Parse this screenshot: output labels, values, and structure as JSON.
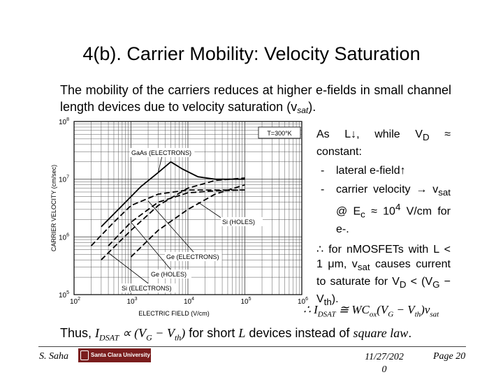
{
  "slide": {
    "title": "4(b). Carrier Mobility: Velocity Saturation",
    "intro_text": "The mobility of the carriers reduces at higher e-fields in small channel length devices due to velocity saturation (v",
    "intro_sub": "sat",
    "intro_end": ").",
    "right": {
      "p1": "As L↓, while V",
      "p1_sub": "D",
      "p1_end": " ≈ constant:",
      "bullets": [
        {
          "dash": "-",
          "text": "lateral e-field↑"
        },
        {
          "dash": "-",
          "text": "carrier velocity → v",
          "sub": "sat",
          "text2": " @ E",
          "sub2": "c",
          "text3": " ≈ 10",
          "sup": "4",
          "text4": " V/cm for e-."
        }
      ],
      "conclusion_a": "∴ for nMOSFETs with L < 1 μm, v",
      "conclusion_sub": "sat",
      "conclusion_b": " causes current to saturate for V",
      "conclusion_sub2": "D",
      "conclusion_c": " < (V",
      "conclusion_sub3": "G",
      "conclusion_d": " − V",
      "conclusion_sub4": "th",
      "conclusion_e": ")."
    },
    "equation": {
      "a": "∴ I",
      "sub1": "DSAT",
      "b": " ≅ WC",
      "sub2": "ox",
      "c": "(V",
      "sub3": "G",
      "d": " − V",
      "sub4": "th",
      "e": ")v",
      "sub5": "sat"
    },
    "bottom": {
      "a": "Thus, ",
      "i": "I",
      "isub": "DSAT",
      "b": " ∝ (V",
      "gsub": "G",
      "c": " − V",
      "thsub": "th",
      "d": ")",
      "e": " for short ",
      "L": "L",
      "f": " devices instead of ",
      "sq": "square law",
      "g": "."
    },
    "footer": {
      "author": "S. Saha",
      "logo_text": "Santa Clara University",
      "date_line1": "11/27/202",
      "date_line2": "0",
      "page": "Page 20"
    }
  },
  "chart_data": {
    "type": "line",
    "x_scale": "log",
    "y_scale": "log",
    "xlim": [
      100,
      1000000
    ],
    "ylim": [
      100000,
      100000000
    ],
    "xlabel": "ELECTRIC FIELD (V/cm)",
    "ylabel": "CARRIER VELOCITY (cm/sec)",
    "x_ticks": [
      "10^2",
      "10^3",
      "10^4",
      "10^5",
      "10^6"
    ],
    "y_ticks": [
      "10^5",
      "10^6",
      "10^7",
      "10^8"
    ],
    "annotation_temp": "T=300°K",
    "grid": true,
    "series": [
      {
        "name": "GaAs (ELECTRONS)",
        "style": "solid",
        "x": [
          300,
          700,
          1500,
          3000,
          5000,
          8000,
          15000,
          30000,
          100000
        ],
        "y": [
          1500000,
          3500000,
          7500000,
          13000000,
          20000000,
          15000000,
          11000000,
          10000000,
          10000000
        ]
      },
      {
        "name": "Si (ELECTRONS)",
        "style": "dashed",
        "x": [
          300,
          1000,
          3000,
          10000,
          30000,
          100000
        ],
        "y": [
          400000,
          1300000,
          3500000,
          7000000,
          9500000,
          10500000
        ]
      },
      {
        "name": "Si (HOLES)",
        "style": "dashed",
        "x": [
          1000,
          3000,
          10000,
          30000,
          100000
        ],
        "y": [
          450000,
          1300000,
          3000000,
          5500000,
          8000000
        ]
      },
      {
        "name": "Ge (ELECTRONS)",
        "style": "dashed",
        "x": [
          200,
          500,
          1000,
          3000,
          10000,
          30000,
          100000
        ],
        "y": [
          700000,
          1800000,
          3500000,
          5500000,
          6500000,
          6500000,
          6500000
        ]
      },
      {
        "name": "Ge (HOLES)",
        "style": "dashed",
        "x": [
          400,
          1000,
          3000,
          10000,
          30000,
          100000
        ],
        "y": [
          700000,
          1800000,
          4000000,
          5800000,
          6300000,
          6500000
        ]
      }
    ]
  }
}
